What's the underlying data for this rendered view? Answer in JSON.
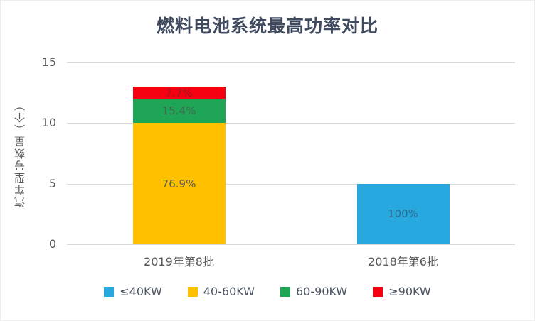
{
  "title": "燃料电池系统最高功率对比",
  "chart_data": {
    "type": "bar",
    "stacked": true,
    "title": "燃料电池系统最高功率对比",
    "ylabel": "汽车型号数量（个）",
    "xlabel": "",
    "ylim": [
      0,
      15
    ],
    "yticks": [
      0,
      5,
      10,
      15
    ],
    "grid": true,
    "legend_position": "bottom",
    "categories": [
      "2019年第8批",
      "2018年第6批"
    ],
    "series": [
      {
        "name": "≤40KW",
        "color": "#27A8DE",
        "label_color": "#2F6B8F",
        "values": [
          0,
          5
        ],
        "labels": [
          "",
          "100%"
        ]
      },
      {
        "name": "40-60KW",
        "color": "#FFC000",
        "label_color": "#595959",
        "values": [
          10,
          0
        ],
        "labels": [
          "76.9%",
          ""
        ]
      },
      {
        "name": "60-90KW",
        "color": "#1EA555",
        "label_color": "#3F6B4F",
        "values": [
          2,
          0
        ],
        "labels": [
          "15.4%",
          ""
        ]
      },
      {
        "name": "≥90KW",
        "color": "#F50010",
        "label_color": "#9B1B1B",
        "values": [
          1,
          0
        ],
        "labels": [
          "7.7%",
          ""
        ]
      }
    ]
  },
  "colors": {
    "grid": "#D9D9D9",
    "axis_text": "#595959",
    "title_text": "#3F4A5F",
    "legend_text": "#4C5564",
    "background": "#FFFFFF"
  }
}
